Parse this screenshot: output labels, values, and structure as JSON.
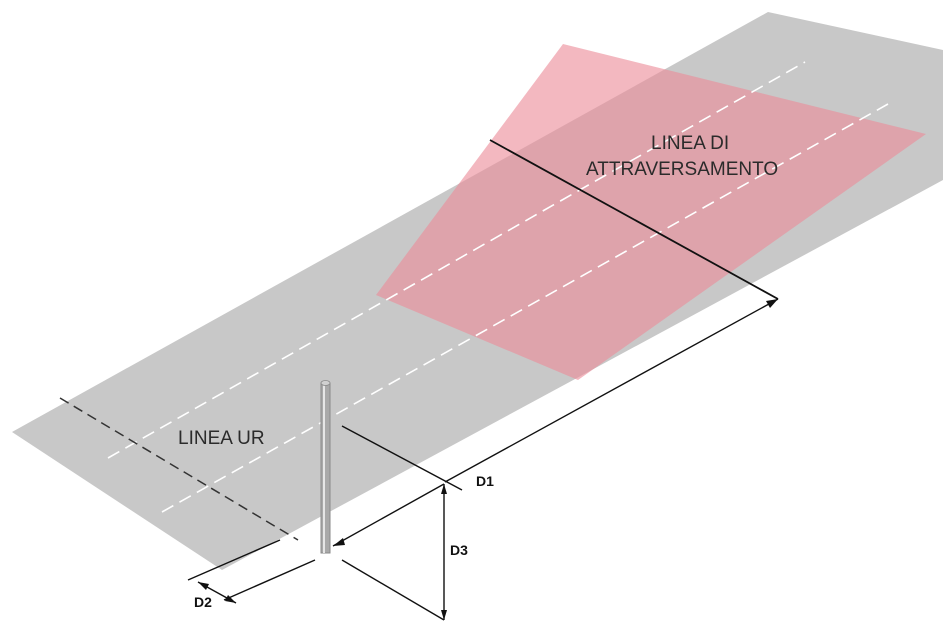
{
  "labels": {
    "crossing_line_1": "LINEA DI",
    "crossing_line_2": "ATTRAVERSAMENTO",
    "ur_line": "LINEA UR",
    "d1": "D1",
    "d2": "D2",
    "d3": "D3"
  },
  "colors": {
    "road": "#c8c8c8",
    "crossing_zone": "#ec8d9a",
    "lane_marking": "#ffffff",
    "lines": "#111111",
    "pole": "#a9a9a9"
  }
}
